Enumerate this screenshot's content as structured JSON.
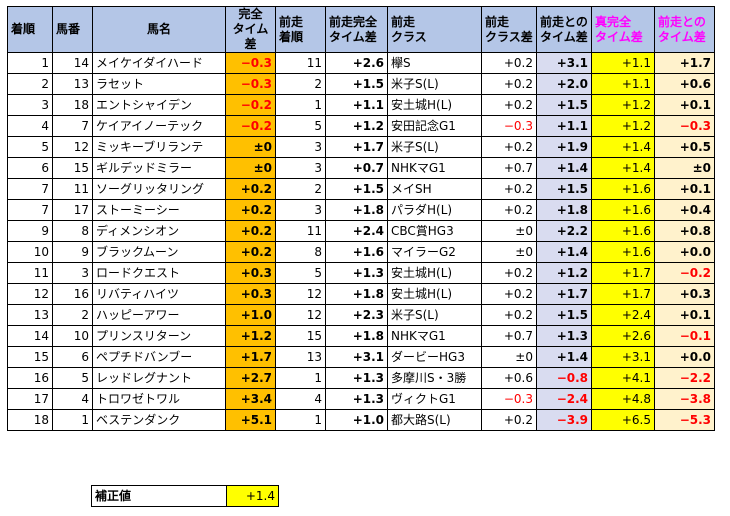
{
  "headers": {
    "rank": "着順",
    "number": "馬番",
    "horse": "馬名",
    "time_diff": "完全\nタイム差",
    "prev_rank": "前走\n着順",
    "prev_time_diff": "前走完全\nタイム差",
    "prev_class": "前走\nクラス",
    "class_diff": "前走\nクラス差",
    "vs_prev": "前走との\nタイム差",
    "true_time_diff": "真完全\nタイム差",
    "true_vs_prev": "前走との\nタイム差"
  },
  "rows": [
    {
      "rank": "1",
      "num": "14",
      "name": "メイケイダイハード",
      "td": "−0.3",
      "td_neg": true,
      "prank": "11",
      "ptd": "+2.6",
      "pclass": "欅S",
      "cdiff": "+0.2",
      "cdiff_neg": false,
      "vsp": "+3.1",
      "vsp_neg": false,
      "ttd": "+1.1",
      "tvp": "+1.7",
      "tvp_neg": false
    },
    {
      "rank": "2",
      "num": "13",
      "name": "ラセット",
      "td": "−0.3",
      "td_neg": true,
      "prank": "2",
      "ptd": "+1.5",
      "pclass": "米子S(L)",
      "cdiff": "+0.2",
      "cdiff_neg": false,
      "vsp": "+2.0",
      "vsp_neg": false,
      "ttd": "+1.1",
      "tvp": "+0.6",
      "tvp_neg": false
    },
    {
      "rank": "3",
      "num": "18",
      "name": "エントシャイデン",
      "td": "−0.2",
      "td_neg": true,
      "prank": "1",
      "ptd": "+1.1",
      "pclass": "安土城H(L)",
      "cdiff": "+0.2",
      "cdiff_neg": false,
      "vsp": "+1.5",
      "vsp_neg": false,
      "ttd": "+1.2",
      "tvp": "+0.1",
      "tvp_neg": false
    },
    {
      "rank": "4",
      "num": "7",
      "name": "ケイアイノーテック",
      "td": "−0.2",
      "td_neg": true,
      "prank": "5",
      "ptd": "+1.2",
      "pclass": "安田記念G1",
      "cdiff": "−0.3",
      "cdiff_neg": true,
      "vsp": "+1.1",
      "vsp_neg": false,
      "ttd": "+1.2",
      "tvp": "−0.3",
      "tvp_neg": true
    },
    {
      "rank": "5",
      "num": "12",
      "name": "ミッキーブリランテ",
      "td": "±0",
      "td_neg": false,
      "prank": "3",
      "ptd": "+1.7",
      "pclass": "米子S(L)",
      "cdiff": "+0.2",
      "cdiff_neg": false,
      "vsp": "+1.9",
      "vsp_neg": false,
      "ttd": "+1.4",
      "tvp": "+0.5",
      "tvp_neg": false
    },
    {
      "rank": "6",
      "num": "15",
      "name": "ギルデッドミラー",
      "td": "±0",
      "td_neg": false,
      "prank": "3",
      "ptd": "+0.7",
      "pclass": "NHKマG1",
      "cdiff": "+0.7",
      "cdiff_neg": false,
      "vsp": "+1.4",
      "vsp_neg": false,
      "ttd": "+1.4",
      "tvp": "±0",
      "tvp_neg": false
    },
    {
      "rank": "7",
      "num": "11",
      "name": "ソーグリッタリング",
      "td": "+0.2",
      "td_neg": false,
      "prank": "2",
      "ptd": "+1.5",
      "pclass": "メイSH",
      "cdiff": "+0.2",
      "cdiff_neg": false,
      "vsp": "+1.5",
      "vsp_neg": false,
      "ttd": "+1.6",
      "tvp": "+0.1",
      "tvp_neg": false
    },
    {
      "rank": "7",
      "num": "17",
      "name": "ストーミーシー",
      "td": "+0.2",
      "td_neg": false,
      "prank": "3",
      "ptd": "+1.8",
      "pclass": "パラダH(L)",
      "cdiff": "+0.2",
      "cdiff_neg": false,
      "vsp": "+1.8",
      "vsp_neg": false,
      "ttd": "+1.6",
      "tvp": "+0.4",
      "tvp_neg": false
    },
    {
      "rank": "9",
      "num": "8",
      "name": "ディメンシオン",
      "td": "+0.2",
      "td_neg": false,
      "prank": "11",
      "ptd": "+2.4",
      "pclass": "CBC賞HG3",
      "cdiff": "±0",
      "cdiff_neg": false,
      "vsp": "+2.2",
      "vsp_neg": false,
      "ttd": "+1.6",
      "tvp": "+0.8",
      "tvp_neg": false
    },
    {
      "rank": "10",
      "num": "9",
      "name": "ブラックムーン",
      "td": "+0.2",
      "td_neg": false,
      "prank": "8",
      "ptd": "+1.6",
      "pclass": "マイラーG2",
      "cdiff": "±0",
      "cdiff_neg": false,
      "vsp": "+1.4",
      "vsp_neg": false,
      "ttd": "+1.6",
      "tvp": "+0.0",
      "tvp_neg": false
    },
    {
      "rank": "11",
      "num": "3",
      "name": "ロードクエスト",
      "td": "+0.3",
      "td_neg": false,
      "prank": "5",
      "ptd": "+1.3",
      "pclass": "安土城H(L)",
      "cdiff": "+0.2",
      "cdiff_neg": false,
      "vsp": "+1.2",
      "vsp_neg": false,
      "ttd": "+1.7",
      "tvp": "−0.2",
      "tvp_neg": true
    },
    {
      "rank": "12",
      "num": "16",
      "name": "リバティハイツ",
      "td": "+0.3",
      "td_neg": false,
      "prank": "12",
      "ptd": "+1.8",
      "pclass": "安土城H(L)",
      "cdiff": "+0.2",
      "cdiff_neg": false,
      "vsp": "+1.7",
      "vsp_neg": false,
      "ttd": "+1.7",
      "tvp": "+0.3",
      "tvp_neg": false
    },
    {
      "rank": "13",
      "num": "2",
      "name": "ハッピーアワー",
      "td": "+1.0",
      "td_neg": false,
      "prank": "12",
      "ptd": "+2.3",
      "pclass": "米子S(L)",
      "cdiff": "+0.2",
      "cdiff_neg": false,
      "vsp": "+1.5",
      "vsp_neg": false,
      "ttd": "+2.4",
      "tvp": "+0.1",
      "tvp_neg": false
    },
    {
      "rank": "14",
      "num": "10",
      "name": "プリンスリターン",
      "td": "+1.2",
      "td_neg": false,
      "prank": "15",
      "ptd": "+1.8",
      "pclass": "NHKマG1",
      "cdiff": "+0.7",
      "cdiff_neg": false,
      "vsp": "+1.3",
      "vsp_neg": false,
      "ttd": "+2.6",
      "tvp": "−0.1",
      "tvp_neg": true
    },
    {
      "rank": "15",
      "num": "6",
      "name": "ペプチドバンブー",
      "td": "+1.7",
      "td_neg": false,
      "prank": "13",
      "ptd": "+3.1",
      "pclass": "ダービーHG3",
      "cdiff": "±0",
      "cdiff_neg": false,
      "vsp": "+1.4",
      "vsp_neg": false,
      "ttd": "+3.1",
      "tvp": "+0.0",
      "tvp_neg": false
    },
    {
      "rank": "16",
      "num": "5",
      "name": "レッドレグナント",
      "td": "+2.7",
      "td_neg": false,
      "prank": "1",
      "ptd": "+1.3",
      "pclass": "多摩川S・3勝",
      "cdiff": "+0.6",
      "cdiff_neg": false,
      "vsp": "−0.8",
      "vsp_neg": true,
      "ttd": "+4.1",
      "tvp": "−2.2",
      "tvp_neg": true
    },
    {
      "rank": "17",
      "num": "4",
      "name": "トロワゼトワル",
      "td": "+3.4",
      "td_neg": false,
      "prank": "4",
      "ptd": "+1.3",
      "pclass": "ヴィクトG1",
      "cdiff": "−0.3",
      "cdiff_neg": true,
      "vsp": "−2.4",
      "vsp_neg": true,
      "ttd": "+4.8",
      "tvp": "−3.8",
      "tvp_neg": true
    },
    {
      "rank": "18",
      "num": "1",
      "name": "ベステンダンク",
      "td": "+5.1",
      "td_neg": false,
      "prank": "1",
      "ptd": "+1.0",
      "pclass": "都大路S(L)",
      "cdiff": "+0.2",
      "cdiff_neg": false,
      "vsp": "−3.9",
      "vsp_neg": true,
      "ttd": "+6.5",
      "tvp": "−5.3",
      "tvp_neg": true
    }
  ],
  "correction": {
    "label": "補正値",
    "value": "+1.4"
  },
  "colors": {
    "header": "#b4c6e7",
    "time": "#ffc000",
    "lavender": "#d9dcf0",
    "yellow": "#ffff00",
    "light_yellow": "#fff2cc",
    "negative": "#ff0000",
    "pink": "#ff00ff"
  }
}
